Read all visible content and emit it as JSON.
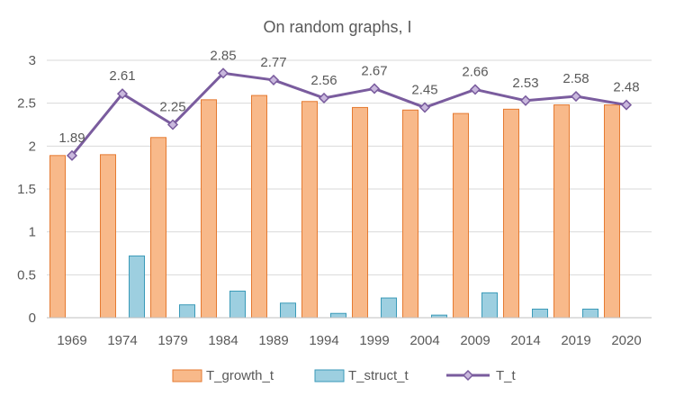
{
  "chart_data": {
    "type": "bar",
    "title": "On random graphs, I",
    "categories": [
      "1969",
      "1974",
      "1979",
      "1984",
      "1989",
      "1994",
      "1999",
      "2004",
      "2009",
      "2014",
      "2019",
      "2020"
    ],
    "ylim": [
      0,
      3
    ],
    "yticks": [
      "0",
      "0.5",
      "1",
      "1.5",
      "2",
      "2.5",
      "3"
    ],
    "grid": true,
    "legend_position": "bottom",
    "series": [
      {
        "name": "T_growth_t",
        "kind": "bar",
        "color": "#F8B98A",
        "stroke": "#E57A31",
        "values": [
          1.89,
          1.9,
          2.1,
          2.54,
          2.59,
          2.52,
          2.45,
          2.42,
          2.38,
          2.43,
          2.48,
          2.48
        ]
      },
      {
        "name": "T_struct_t",
        "kind": "bar",
        "color": "#9DCFE0",
        "stroke": "#3A9AB8",
        "values": [
          0,
          0.72,
          0.15,
          0.31,
          0.17,
          0.05,
          0.23,
          0.03,
          0.29,
          0.1,
          0.1,
          0
        ]
      },
      {
        "name": "T_t",
        "kind": "line",
        "color": "#7A5C9E",
        "values": [
          1.89,
          2.61,
          2.25,
          2.85,
          2.77,
          2.56,
          2.67,
          2.45,
          2.66,
          2.53,
          2.58,
          2.48
        ],
        "labels": [
          "1.89",
          "2.61",
          "2.25",
          "2.85",
          "2.77",
          "2.56",
          "2.67",
          "2.45",
          "2.66",
          "2.53",
          "2.58",
          "2.48"
        ]
      }
    ]
  }
}
